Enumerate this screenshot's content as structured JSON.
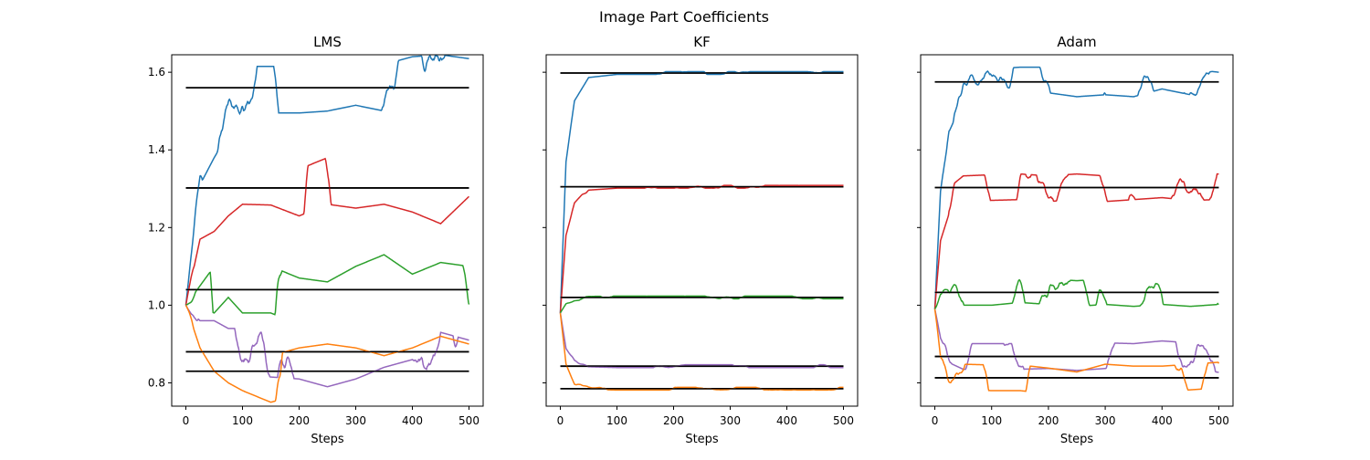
{
  "figure": {
    "suptitle": "Image Part Coefficients"
  },
  "colors": {
    "series": [
      "#1f77b4",
      "#d62728",
      "#2ca02c",
      "#9467bd",
      "#ff7f0e"
    ],
    "reference": "#000000"
  },
  "chart_data": [
    {
      "type": "line",
      "title": "LMS",
      "xlabel": "Steps",
      "ylabel": "",
      "xlim": [
        -25,
        525
      ],
      "ylim": [
        0.74,
        1.645
      ],
      "xticks": [
        0,
        100,
        200,
        300,
        400,
        500
      ],
      "yticks": [
        0.8,
        1.0,
        1.2,
        1.4,
        1.6
      ],
      "ytick_labels": [
        "0.8",
        "1.0",
        "1.2",
        "1.4",
        "1.6"
      ],
      "reference_lines": [
        1.56,
        1.302,
        1.04,
        0.88,
        0.83
      ],
      "series_shape": {
        "start": 1.0,
        "tau": 25,
        "noise_amplitude": 0.02,
        "smoothing": 0.985
      },
      "series": [
        {
          "color": "#1f77b4",
          "x": [
            0,
            25,
            50,
            75,
            100,
            150,
            200,
            250,
            300,
            350,
            400,
            450,
            500
          ],
          "y": [
            1.0,
            1.34,
            1.44,
            1.5,
            1.555,
            1.555,
            1.555,
            1.56,
            1.575,
            1.56,
            1.58,
            1.585,
            1.575
          ]
        },
        {
          "color": "#d62728",
          "x": [
            0,
            25,
            50,
            75,
            100,
            150,
            200,
            250,
            300,
            350,
            400,
            450,
            500
          ],
          "y": [
            1.0,
            1.2,
            1.25,
            1.29,
            1.32,
            1.318,
            1.29,
            1.32,
            1.31,
            1.32,
            1.3,
            1.27,
            1.34
          ]
        },
        {
          "color": "#2ca02c",
          "x": [
            0,
            25,
            50,
            75,
            100,
            150,
            200,
            250,
            300,
            350,
            400,
            450,
            500
          ],
          "y": [
            1.0,
            1.02,
            1.04,
            1.08,
            1.04,
            1.04,
            1.01,
            1.0,
            1.04,
            1.07,
            1.02,
            1.05,
            1.04
          ]
        },
        {
          "color": "#9467bd",
          "x": [
            0,
            25,
            50,
            75,
            100,
            150,
            200,
            250,
            300,
            350,
            400,
            450,
            500
          ],
          "y": [
            1.0,
            0.93,
            0.9,
            0.88,
            0.88,
            0.875,
            0.87,
            0.85,
            0.87,
            0.9,
            0.92,
            0.87,
            0.85
          ]
        },
        {
          "color": "#ff7f0e",
          "x": [
            0,
            25,
            50,
            75,
            100,
            150,
            200,
            250,
            300,
            350,
            400,
            450,
            500
          ],
          "y": [
            1.0,
            0.92,
            0.89,
            0.86,
            0.84,
            0.81,
            0.83,
            0.84,
            0.83,
            0.81,
            0.83,
            0.86,
            0.84
          ]
        }
      ]
    },
    {
      "type": "line",
      "title": "KF",
      "xlabel": "Steps",
      "ylabel": "",
      "xlim": [
        -25,
        525
      ],
      "ylim": [
        0.74,
        1.645
      ],
      "xticks": [
        0,
        100,
        200,
        300,
        400,
        500
      ],
      "yticks": [
        0.8,
        1.0,
        1.2,
        1.4,
        1.6
      ],
      "ytick_labels": [
        "",
        "",
        "",
        "",
        ""
      ],
      "reference_lines": [
        1.598,
        1.305,
        1.02,
        0.843,
        0.785
      ],
      "series_shape": {
        "start": 0.98,
        "tau": 10,
        "noise_amplitude": 0.0012,
        "smoothing": 0.9
      },
      "series": [
        {
          "color": "#1f77b4",
          "x": [
            0,
            10,
            25,
            50,
            100,
            200,
            300,
            400,
            500
          ],
          "y": [
            0.98,
            1.37,
            1.53,
            1.59,
            1.598,
            1.598,
            1.598,
            1.598,
            1.598
          ]
        },
        {
          "color": "#d62728",
          "x": [
            0,
            10,
            25,
            50,
            100,
            200,
            300,
            400,
            500
          ],
          "y": [
            0.98,
            1.18,
            1.26,
            1.3,
            1.305,
            1.305,
            1.305,
            1.305,
            1.305
          ]
        },
        {
          "color": "#2ca02c",
          "x": [
            0,
            10,
            25,
            50,
            100,
            200,
            300,
            400,
            500
          ],
          "y": [
            0.98,
            1.005,
            1.015,
            1.019,
            1.02,
            1.02,
            1.02,
            1.02,
            1.02
          ]
        },
        {
          "color": "#9467bd",
          "x": [
            0,
            10,
            25,
            50,
            100,
            200,
            300,
            400,
            500
          ],
          "y": [
            0.98,
            0.89,
            0.855,
            0.845,
            0.843,
            0.843,
            0.843,
            0.843,
            0.843
          ]
        },
        {
          "color": "#ff7f0e",
          "x": [
            0,
            10,
            25,
            50,
            100,
            200,
            300,
            400,
            500
          ],
          "y": [
            0.98,
            0.85,
            0.8,
            0.787,
            0.785,
            0.785,
            0.785,
            0.785,
            0.785
          ]
        }
      ]
    },
    {
      "type": "line",
      "title": "Adam",
      "xlabel": "Steps",
      "ylabel": "",
      "xlim": [
        -25,
        525
      ],
      "ylim": [
        0.74,
        1.645
      ],
      "xticks": [
        0,
        100,
        200,
        300,
        400,
        500
      ],
      "yticks": [
        0.8,
        1.0,
        1.2,
        1.4,
        1.6
      ],
      "ytick_labels": [
        "",
        "",
        "",
        "",
        ""
      ],
      "reference_lines": [
        1.575,
        1.303,
        1.033,
        0.868,
        0.813
      ],
      "series_shape": {
        "start": 0.99,
        "tau": 12,
        "noise_amplitude": 0.011,
        "smoothing": 0.93
      },
      "series": [
        {
          "color": "#1f77b4",
          "x": [
            0,
            10,
            25,
            50,
            100,
            150,
            200,
            250,
            300,
            350,
            400,
            450,
            500
          ],
          "y": [
            0.99,
            1.3,
            1.48,
            1.56,
            1.575,
            1.58,
            1.58,
            1.57,
            1.575,
            1.57,
            1.59,
            1.575,
            1.567
          ]
        },
        {
          "color": "#d62728",
          "x": [
            0,
            10,
            25,
            50,
            100,
            150,
            200,
            250,
            300,
            350,
            400,
            450,
            500
          ],
          "y": [
            0.99,
            1.18,
            1.27,
            1.3,
            1.303,
            1.305,
            1.3,
            1.305,
            1.3,
            1.305,
            1.31,
            1.303,
            1.305
          ]
        },
        {
          "color": "#2ca02c",
          "x": [
            0,
            10,
            25,
            50,
            100,
            150,
            200,
            250,
            300,
            350,
            400,
            450,
            500
          ],
          "y": [
            0.99,
            1.015,
            1.025,
            1.033,
            1.033,
            1.04,
            1.035,
            1.03,
            1.035,
            1.03,
            1.035,
            1.03,
            1.035
          ]
        },
        {
          "color": "#9467bd",
          "x": [
            0,
            10,
            25,
            50,
            100,
            150,
            200,
            250,
            300,
            350,
            400,
            450,
            500
          ],
          "y": [
            0.99,
            0.92,
            0.885,
            0.868,
            0.868,
            0.868,
            0.87,
            0.865,
            0.87,
            0.868,
            0.875,
            0.87,
            0.86
          ]
        },
        {
          "color": "#ff7f0e",
          "x": [
            0,
            10,
            25,
            50,
            100,
            150,
            200,
            250,
            300,
            350,
            400,
            450,
            500
          ],
          "y": [
            0.99,
            0.88,
            0.835,
            0.815,
            0.813,
            0.813,
            0.805,
            0.795,
            0.815,
            0.81,
            0.81,
            0.815,
            0.82
          ]
        }
      ]
    }
  ]
}
